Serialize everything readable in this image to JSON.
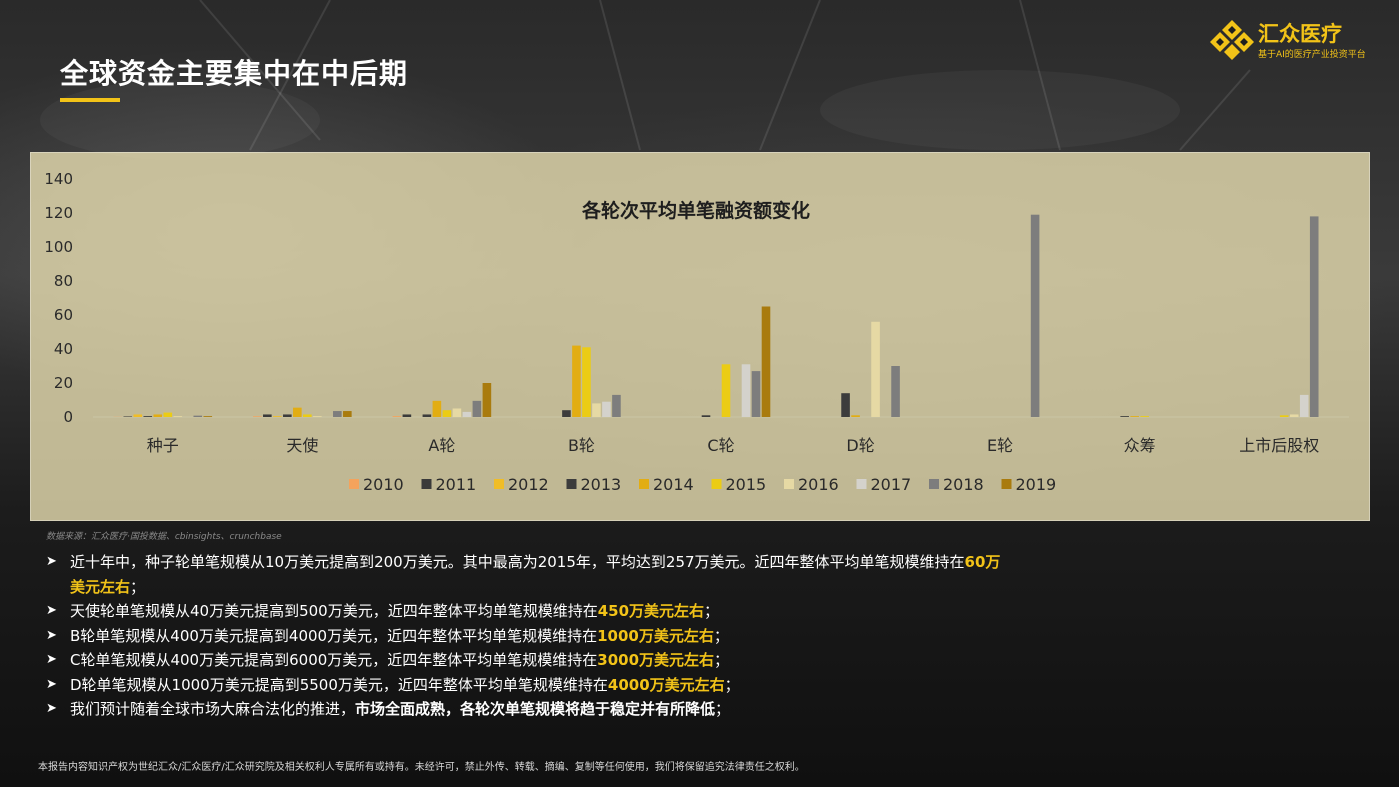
{
  "page": {
    "title": "全球资金主要集中在中后期",
    "logo": {
      "name": "汇众医疗",
      "tagline": "基于AI的医疗产业投资平台"
    },
    "source": "数据来源：汇众医疗·国投数据、cbinsights、crunchbase",
    "footer": "本报告内容知识产权为世纪汇众/汇众医疗/汇众研究院及相关权利人专属所有或持有。未经许可，禁止外传、转载、摘编、复制等任何使用，我们将保留追究法律责任之权利。"
  },
  "bullets": [
    {
      "parts": [
        {
          "text": "近十年中，种子轮单笔规模从10万美元提高到200万美元。其中最高为2015年，平均达到257万美元。近四年整体平均单笔规模维持在",
          "style": ""
        },
        {
          "text": "60万美元左右",
          "style": "hl"
        },
        {
          "text": "；",
          "style": ""
        }
      ]
    },
    {
      "parts": [
        {
          "text": "天使轮单笔规模从40万美元提高到500万美元，近四年整体平均单笔规模维持在",
          "style": ""
        },
        {
          "text": "450万美元左右",
          "style": "hl"
        },
        {
          "text": "；",
          "style": ""
        }
      ]
    },
    {
      "parts": [
        {
          "text": "B轮单笔规模从400万美元提高到4000万美元，近四年整体平均单笔规模维持在",
          "style": ""
        },
        {
          "text": "1000万美元左右",
          "style": "hl"
        },
        {
          "text": "；",
          "style": ""
        }
      ]
    },
    {
      "parts": [
        {
          "text": "C轮单笔规模从400万美元提高到6000万美元，近四年整体平均单笔规模维持在",
          "style": ""
        },
        {
          "text": "3000万美元左右",
          "style": "hl"
        },
        {
          "text": "；",
          "style": ""
        }
      ]
    },
    {
      "parts": [
        {
          "text": "D轮单笔规模从1000万美元提高到5500万美元，近四年整体平均单笔规模维持在",
          "style": ""
        },
        {
          "text": "4000万美元左右",
          "style": "hl"
        },
        {
          "text": "；",
          "style": ""
        }
      ]
    },
    {
      "parts": [
        {
          "text": "我们预计随着全球市场大麻合法化的推进，",
          "style": ""
        },
        {
          "text": "市场全面成熟，各轮次单笔规模将趋于稳定并有所降低",
          "style": "bold"
        },
        {
          "text": "；",
          "style": ""
        }
      ]
    }
  ],
  "chart_data": {
    "type": "bar",
    "title": "各轮次平均单笔融资额变化",
    "xlabel": "",
    "ylabel": "",
    "ylim": [
      0,
      140
    ],
    "yticks": [
      0,
      20,
      40,
      60,
      80,
      100,
      120,
      140
    ],
    "grid": false,
    "legend_position": "bottom",
    "categories": [
      "种子",
      "天使",
      "A轮",
      "B轮",
      "C轮",
      "D轮",
      "E轮",
      "众筹",
      "上市后股权"
    ],
    "series": [
      {
        "name": "2010",
        "color": "#f4a35c",
        "values": [
          0.1,
          0.4,
          0.5,
          0,
          0,
          0,
          0,
          0,
          0
        ]
      },
      {
        "name": "2011",
        "color": "#3a3a3a",
        "values": [
          0.3,
          1.5,
          1.5,
          0,
          0,
          0,
          0,
          0,
          0
        ]
      },
      {
        "name": "2012",
        "color": "#f0bd27",
        "values": [
          1.5,
          0.5,
          0,
          0,
          0,
          0,
          0,
          0,
          0
        ]
      },
      {
        "name": "2013",
        "color": "#3c3c3c",
        "values": [
          0.5,
          1.5,
          1.5,
          4,
          1,
          14,
          0,
          0.5,
          0
        ]
      },
      {
        "name": "2014",
        "color": "#e2ad13",
        "values": [
          1.5,
          5.5,
          9.5,
          42,
          0,
          1,
          0,
          0.5,
          0
        ]
      },
      {
        "name": "2015",
        "color": "#ebcc15",
        "values": [
          2.6,
          1.5,
          4,
          41,
          31,
          0,
          0,
          0.5,
          1
        ]
      },
      {
        "name": "2016",
        "color": "#e6d9a4",
        "values": [
          0.5,
          0.5,
          5,
          8,
          0,
          56,
          0,
          0,
          1.5
        ]
      },
      {
        "name": "2017",
        "color": "#d4d2cc",
        "values": [
          0,
          0,
          3,
          9,
          31,
          0,
          0,
          0,
          13
        ]
      },
      {
        "name": "2018",
        "color": "#7d7d7d",
        "values": [
          0.8,
          3.5,
          9.5,
          13,
          27,
          30,
          119,
          0,
          118
        ]
      },
      {
        "name": "2019",
        "color": "#a97b0e",
        "values": [
          0.5,
          3.5,
          20,
          0,
          65,
          0,
          0,
          0,
          0
        ]
      }
    ]
  }
}
